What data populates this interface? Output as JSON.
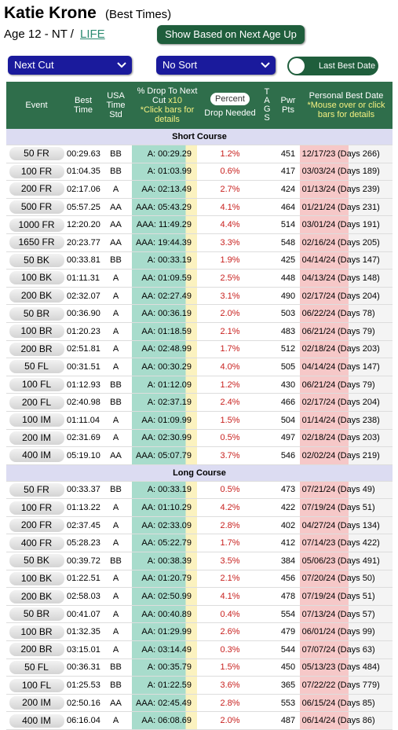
{
  "header": {
    "name": "Katie Krone",
    "subtitle": "(Best Times)",
    "age_text": "Age 12 - NT /",
    "life_link": "LIFE",
    "button": "Show Based on Next Age Up"
  },
  "controls": {
    "cut_select": "Next Cut",
    "sort_select": "No Sort",
    "toggle_label": "Last Best Date"
  },
  "table": {
    "columns": {
      "event": "Event",
      "best_time": "Best Time",
      "std": "USA Time Std",
      "drop_title": "% Drop To Next Cut",
      "drop_scale": "x10",
      "drop_note": "*Click bars for details",
      "percent_toggle": "Percent",
      "drop_needed": "Drop Needed",
      "tags": "TAGS",
      "pwr_pts": "Pwr Pts",
      "pb_date": "Personal Best Date",
      "pb_note": "*Mouse over or click bars for details"
    },
    "sections": [
      {
        "title": "Short Course",
        "rows": [
          [
            "50 FR",
            "00:29.63",
            "BB",
            "A: 00:29.29",
            "1.2%",
            "451",
            "12/17/23",
            "(Days 266)"
          ],
          [
            "100 FR",
            "01:04.35",
            "BB",
            "A: 01:03.99",
            "0.6%",
            "417",
            "03/03/24",
            "(Days 189)"
          ],
          [
            "200 FR",
            "02:17.06",
            "A",
            "AA: 02:13.49",
            "2.7%",
            "424",
            "01/13/24",
            "(Days 239)"
          ],
          [
            "500 FR",
            "05:57.25",
            "AA",
            "AAA: 05:43.29",
            "4.1%",
            "464",
            "01/21/24",
            "(Days 231)"
          ],
          [
            "1000 FR",
            "12:20.20",
            "AA",
            "AAA: 11:49.29",
            "4.4%",
            "514",
            "03/01/24",
            "(Days 191)"
          ],
          [
            "1650 FR",
            "20:23.77",
            "AA",
            "AAA: 19:44.39",
            "3.3%",
            "548",
            "02/16/24",
            "(Days 205)"
          ],
          [
            "50 BK",
            "00:33.81",
            "BB",
            "A: 00:33.19",
            "1.9%",
            "425",
            "04/14/24",
            "(Days 147)"
          ],
          [
            "100 BK",
            "01:11.31",
            "A",
            "AA: 01:09.59",
            "2.5%",
            "448",
            "04/13/24",
            "(Days 148)"
          ],
          [
            "200 BK",
            "02:32.07",
            "A",
            "AA: 02:27.49",
            "3.1%",
            "490",
            "02/17/24",
            "(Days 204)"
          ],
          [
            "50 BR",
            "00:36.90",
            "A",
            "AA: 00:36.19",
            "2.0%",
            "503",
            "06/22/24",
            "(Days 78)"
          ],
          [
            "100 BR",
            "01:20.23",
            "A",
            "AA: 01:18.59",
            "2.1%",
            "483",
            "06/21/24",
            "(Days 79)"
          ],
          [
            "200 BR",
            "02:51.81",
            "A",
            "AA: 02:48.99",
            "1.7%",
            "512",
            "02/18/24",
            "(Days 203)"
          ],
          [
            "50 FL",
            "00:31.51",
            "A",
            "AA: 00:30.29",
            "4.0%",
            "505",
            "04/14/24",
            "(Days 147)"
          ],
          [
            "100 FL",
            "01:12.93",
            "BB",
            "A: 01:12.09",
            "1.2%",
            "430",
            "06/21/24",
            "(Days 79)"
          ],
          [
            "200 FL",
            "02:40.98",
            "BB",
            "A: 02:37.19",
            "2.4%",
            "466",
            "02/17/24",
            "(Days 204)"
          ],
          [
            "100 IM",
            "01:11.04",
            "A",
            "AA: 01:09.99",
            "1.5%",
            "504",
            "01/14/24",
            "(Days 238)"
          ],
          [
            "200 IM",
            "02:31.69",
            "A",
            "AA: 02:30.99",
            "0.5%",
            "497",
            "02/18/24",
            "(Days 203)"
          ],
          [
            "400 IM",
            "05:19.10",
            "AA",
            "AAA: 05:07.79",
            "3.7%",
            "546",
            "02/02/24",
            "(Days 219)"
          ]
        ]
      },
      {
        "title": "Long Course",
        "rows": [
          [
            "50 FR",
            "00:33.37",
            "BB",
            "A: 00:33.19",
            "0.5%",
            "473",
            "07/21/24",
            "(Days 49)"
          ],
          [
            "100 FR",
            "01:13.22",
            "A",
            "AA: 01:10.29",
            "4.2%",
            "422",
            "07/19/24",
            "(Days 51)"
          ],
          [
            "200 FR",
            "02:37.45",
            "A",
            "AA: 02:33.09",
            "2.8%",
            "402",
            "04/27/24",
            "(Days 134)"
          ],
          [
            "400 FR",
            "05:28.23",
            "A",
            "AA: 05:22.79",
            "1.7%",
            "412",
            "07/14/23",
            "(Days 422)"
          ],
          [
            "50 BK",
            "00:39.72",
            "BB",
            "A: 00:38.39",
            "3.5%",
            "384",
            "05/06/23",
            "(Days 491)"
          ],
          [
            "100 BK",
            "01:22.51",
            "A",
            "AA: 01:20.79",
            "2.1%",
            "456",
            "07/20/24",
            "(Days 50)"
          ],
          [
            "200 BK",
            "02:58.03",
            "A",
            "AA: 02:50.99",
            "4.1%",
            "478",
            "07/19/24",
            "(Days 51)"
          ],
          [
            "50 BR",
            "00:41.07",
            "A",
            "AA: 00:40.89",
            "0.4%",
            "554",
            "07/13/24",
            "(Days 57)"
          ],
          [
            "100 BR",
            "01:32.35",
            "A",
            "AA: 01:29.99",
            "2.6%",
            "479",
            "06/01/24",
            "(Days 99)"
          ],
          [
            "200 BR",
            "03:15.01",
            "A",
            "AA: 03:14.49",
            "0.3%",
            "544",
            "07/07/24",
            "(Days 63)"
          ],
          [
            "50 FL",
            "00:36.31",
            "BB",
            "A: 00:35.79",
            "1.5%",
            "450",
            "05/13/23",
            "(Days 484)"
          ],
          [
            "100 FL",
            "01:25.53",
            "BB",
            "A: 01:22.59",
            "3.6%",
            "365",
            "07/22/22",
            "(Days 779)"
          ],
          [
            "200 IM",
            "02:50.16",
            "AA",
            "AAA: 02:45.49",
            "2.8%",
            "553",
            "06/15/24",
            "(Days 85)"
          ],
          [
            "400 IM",
            "06:16.04",
            "A",
            "AA: 06:08.69",
            "2.0%",
            "487",
            "06/14/24",
            "(Days 86)"
          ]
        ]
      }
    ]
  }
}
